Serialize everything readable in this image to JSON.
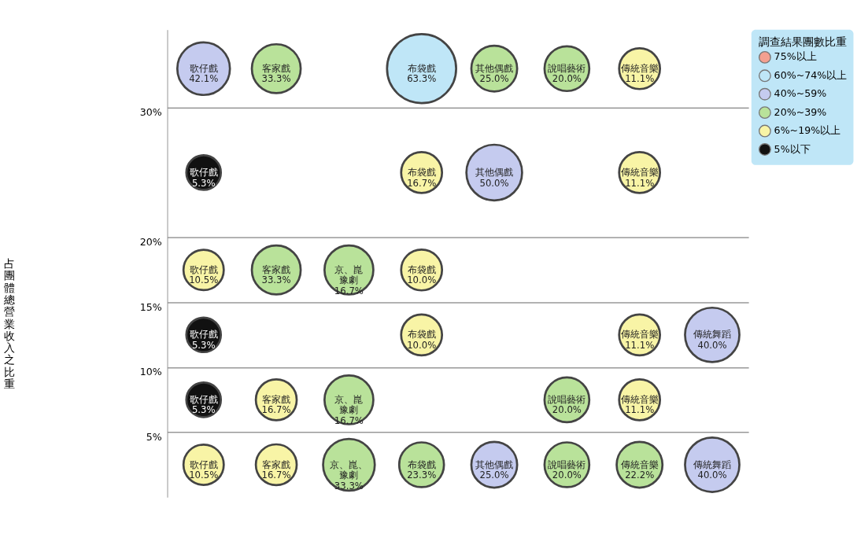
{
  "chart_data": {
    "type": "bubble",
    "ylabel": "占團體總營業收入之比重",
    "legend_title": "調查結果團數比重",
    "categories": [
      null,
      null,
      null,
      null,
      null,
      null,
      null,
      null
    ],
    "ylim": [
      0,
      36
    ],
    "yticks": [
      {
        "value": 5,
        "label": "5%"
      },
      {
        "value": 10,
        "label": "10%"
      },
      {
        "value": 15,
        "label": "15%"
      },
      {
        "value": 20,
        "label": "20%"
      },
      {
        "value": 30,
        "label": "30%"
      }
    ],
    "tick_labels": "y",
    "grid": "y",
    "legend": "top right",
    "series": [
      {
        "name": "75%以上",
        "color": "#f4a090",
        "values": [
          null,
          null,
          null,
          null,
          null,
          null,
          null,
          null
        ]
      },
      {
        "name": "60%~74%以上",
        "color": "#bfe6f7",
        "values": [
          null,
          null,
          null,
          null,
          null,
          null,
          null,
          null
        ]
      },
      {
        "name": "40%~59%",
        "color": "#c5cbef",
        "values": [
          null,
          null,
          null,
          null,
          null,
          null,
          null,
          null
        ]
      },
      {
        "name": "20%~39%",
        "color": "#b9e29a",
        "values": [
          null,
          null,
          null,
          null,
          null,
          null,
          null,
          null
        ]
      },
      {
        "name": "6%~19%以上",
        "color": "#f8f4a6",
        "values": [
          null,
          null,
          null,
          null,
          null,
          null,
          null,
          null
        ]
      },
      {
        "name": "5%以下",
        "color": "#111111",
        "values": [
          null,
          null,
          null,
          null,
          null,
          null,
          null,
          null
        ]
      },
      {
        "values": [
          33,
          33,
          null,
          33,
          33,
          33,
          33,
          null
        ],
        "sizes": [
          0.58,
          0.5,
          null,
          1,
          0.44,
          0.42,
          0.35,
          null
        ],
        "colors": [
          "#c5cbef",
          "#b9e29a",
          null,
          "#bfe6f7",
          "#b9e29a",
          "#b9e29a",
          "#f8f4a6",
          null
        ],
        "value_labels": [
          "歌仔戲\n42.1%",
          "客家戲\n33.3%",
          null,
          "布袋戲\n63.3%",
          "其他偶戲\n25.0%",
          "說唱藝術\n20.0%",
          "傳統音樂\n11.1%",
          null
        ]
      },
      {
        "values": [
          25,
          null,
          null,
          25,
          25,
          null,
          25,
          null
        ],
        "sizes": [
          0.25,
          null,
          null,
          0.35,
          0.65,
          null,
          0.35,
          null
        ],
        "colors": [
          "#111111",
          null,
          null,
          "#f8f4a6",
          "#c5cbef",
          null,
          "#f8f4a6",
          null
        ],
        "value_labels": [
          "歌仔戲\n5.3%",
          null,
          null,
          "布袋戲\n16.7%",
          "其他偶戲\n50.0%",
          null,
          "傳統音樂\n11.1%",
          null
        ]
      },
      {
        "values": [
          17.5,
          17.5,
          17.5,
          17.5,
          null,
          null,
          null,
          null
        ],
        "sizes": [
          0.34,
          0.5,
          0.5,
          0.35,
          null,
          null,
          null,
          null
        ],
        "colors": [
          "#f8f4a6",
          "#b9e29a",
          "#b9e29a",
          "#f8f4a6",
          null,
          null,
          null,
          null
        ],
        "value_labels": [
          "歌仔戲\n10.5%",
          "客家戲\n33.3%",
          "京、崑豫劇\n16.7%",
          "布袋戲\n10.0%",
          null,
          null,
          null,
          null
        ]
      },
      {
        "values": [
          12.5,
          null,
          null,
          12.5,
          null,
          null,
          12.5,
          12.5
        ],
        "sizes": [
          0.25,
          null,
          null,
          0.35,
          null,
          null,
          0.35,
          0.62
        ],
        "colors": [
          "#111111",
          null,
          null,
          "#f8f4a6",
          null,
          null,
          "#f8f4a6",
          "#c5cbef"
        ],
        "value_labels": [
          "歌仔戲\n5.3%",
          null,
          null,
          "布袋戲\n10.0%",
          null,
          null,
          "傳統音樂\n11.1%",
          "傳統舞蹈\n40.0%"
        ]
      },
      {
        "values": [
          7.5,
          7.5,
          7.5,
          null,
          null,
          7.5,
          7.5,
          null
        ],
        "sizes": [
          0.25,
          0.35,
          0.5,
          null,
          null,
          0.42,
          0.35,
          null
        ],
        "colors": [
          "#111111",
          "#f8f4a6",
          "#b9e29a",
          null,
          null,
          "#b9e29a",
          "#f8f4a6",
          null
        ],
        "value_labels": [
          "歌仔戲\n5.3%",
          "客家戲\n16.7%",
          "京、崑豫劇\n16.7%",
          null,
          null,
          "說唱藝術\n20.0%",
          "傳統音樂\n11.1%",
          null
        ]
      },
      {
        "values": [
          2.5,
          2.5,
          2.5,
          2.5,
          2.5,
          2.5,
          2.5,
          2.5
        ],
        "sizes": [
          0.34,
          0.35,
          0.56,
          0.42,
          0.44,
          0.42,
          0.44,
          0.62
        ],
        "colors": [
          "#f8f4a6",
          "#f8f4a6",
          "#b9e29a",
          "#b9e29a",
          "#c5cbef",
          "#b9e29a",
          "#b9e29a",
          "#c5cbef"
        ],
        "value_labels": [
          "歌仔戲\n10.5%",
          "客家戲\n16.7%",
          "京、崑、豫劇\n33.3%",
          "布袋戲\n23.3%",
          "其他偶戲\n25.0%",
          "說唱藝術\n20.0%",
          "傳統音樂\n22.2%",
          "傳統舞蹈\n40.0%"
        ]
      }
    ]
  }
}
